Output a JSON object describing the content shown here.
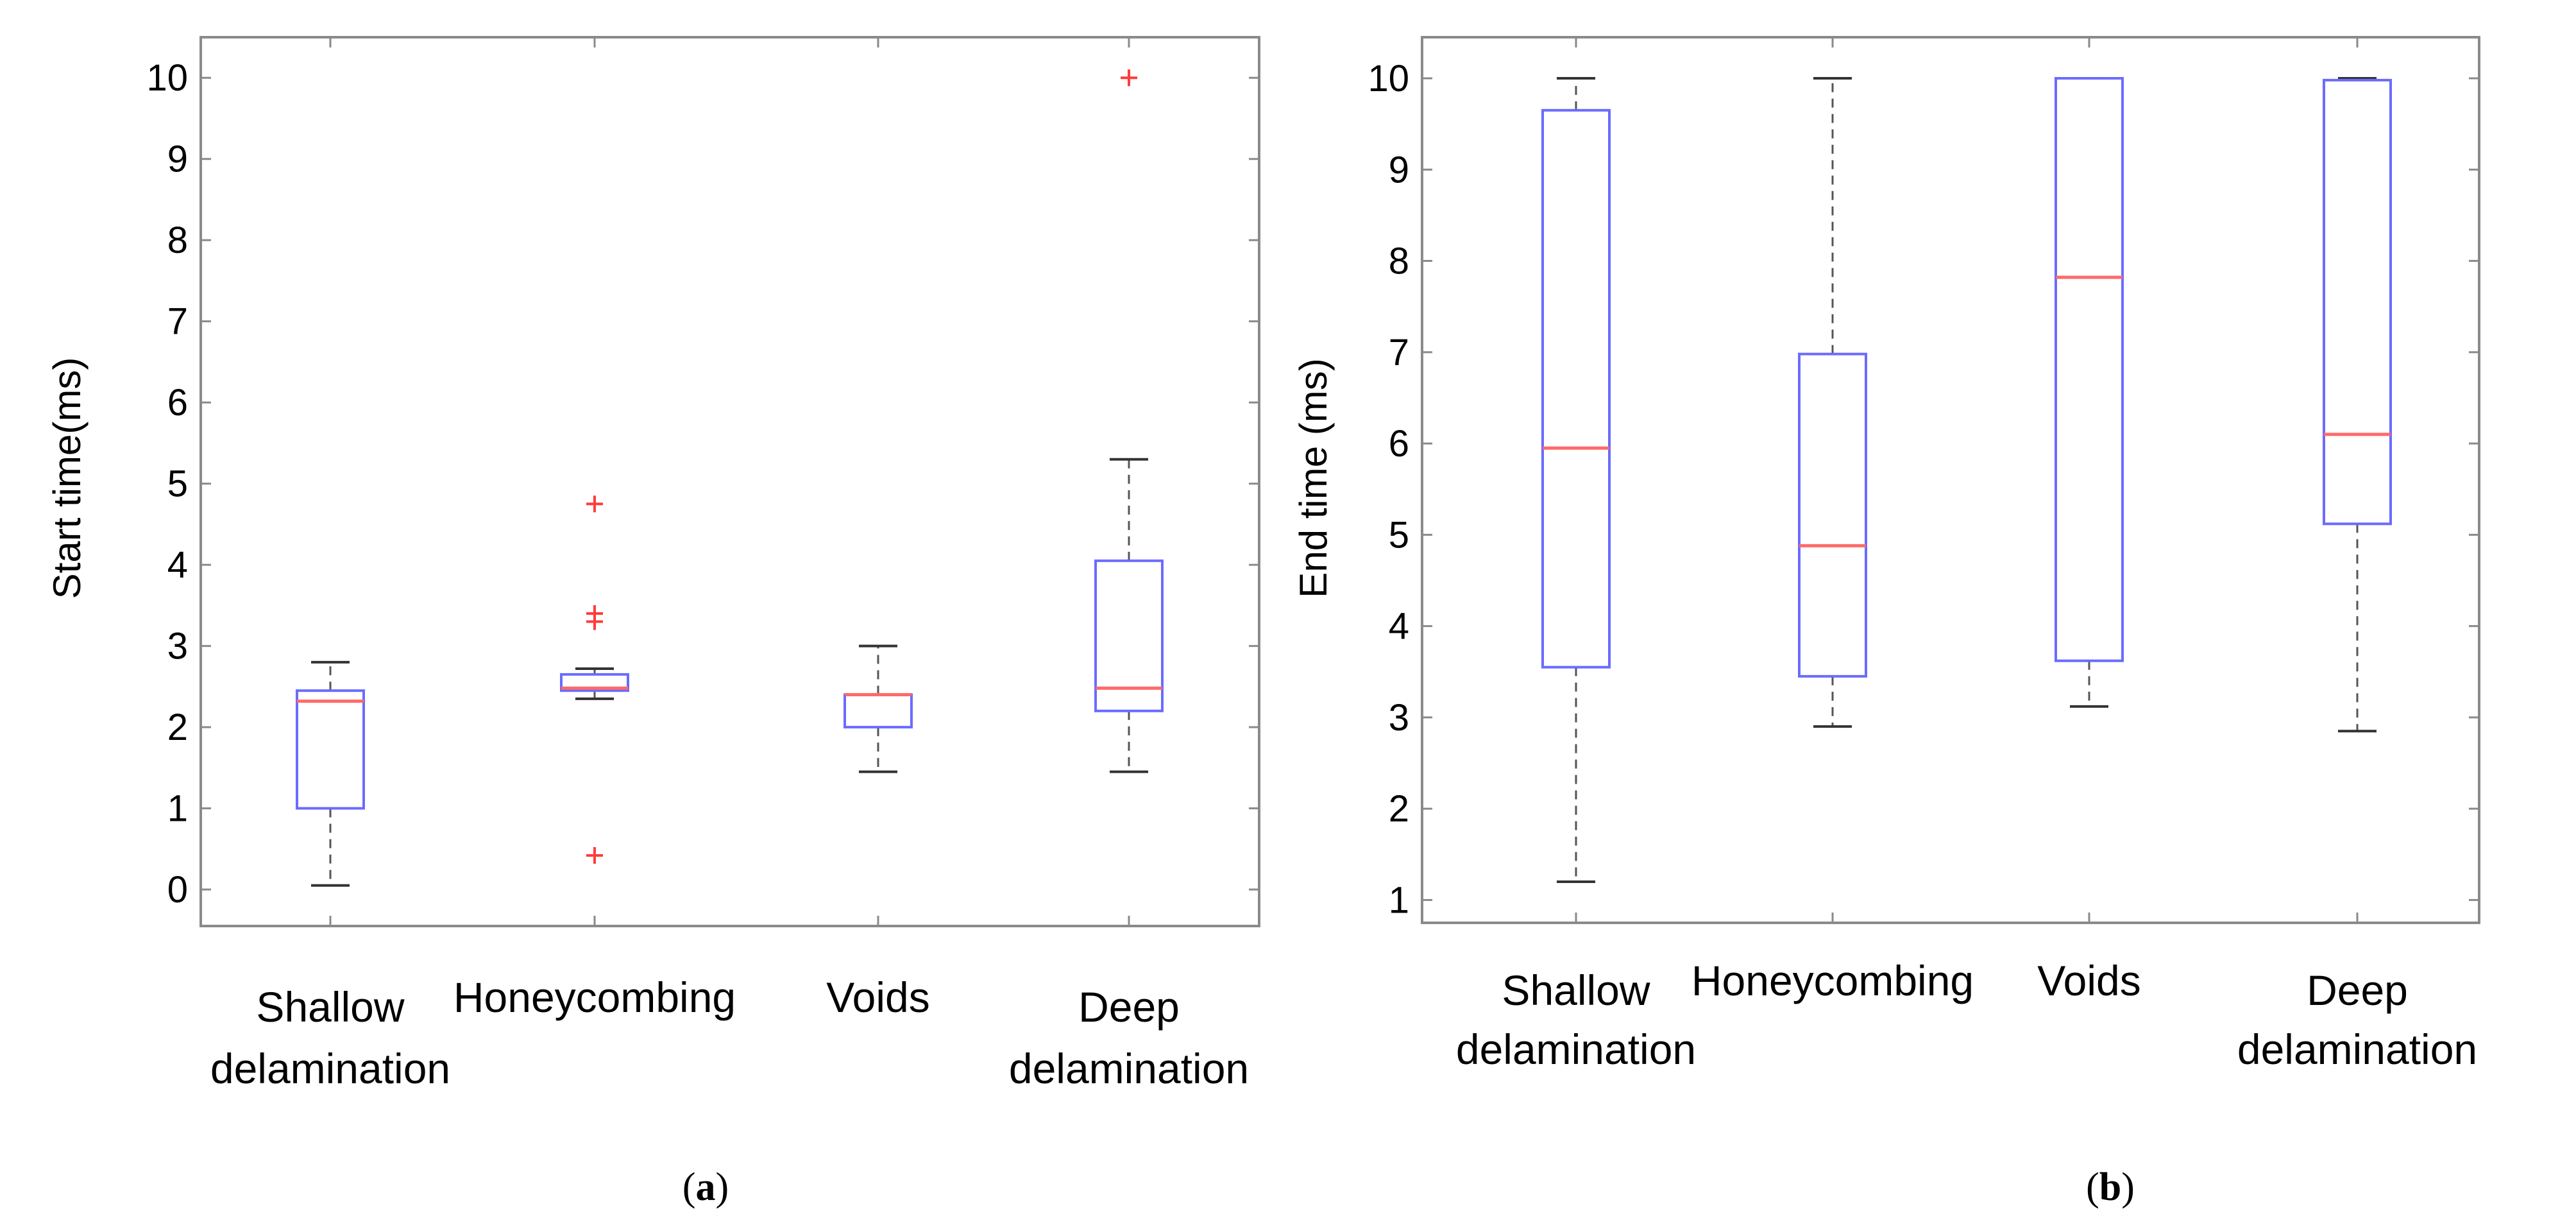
{
  "chart_data": [
    {
      "type": "box",
      "panel_label": "a",
      "ylabel": "Start time(ms)",
      "ylim": [
        -0.45,
        10.5
      ],
      "yticks": [
        0,
        1,
        2,
        3,
        4,
        5,
        6,
        7,
        8,
        9,
        10
      ],
      "categories": [
        {
          "line1": "Shallow",
          "line2": "delamination"
        },
        {
          "line1": "Honeycombing",
          "line2": ""
        },
        {
          "line1": "Voids",
          "line2": ""
        },
        {
          "line1": "Deep",
          "line2": "delamination"
        }
      ],
      "boxes": [
        {
          "whisker_low": 0.05,
          "q1": 1.0,
          "median": 2.32,
          "q3": 2.45,
          "whisker_high": 2.8,
          "outliers": []
        },
        {
          "whisker_low": 2.35,
          "q1": 2.45,
          "median": 2.48,
          "q3": 2.65,
          "whisker_high": 2.72,
          "outliers": [
            4.75,
            3.4,
            3.3,
            0.42
          ]
        },
        {
          "whisker_low": 1.45,
          "q1": 2.0,
          "median": 2.4,
          "q3": 2.4,
          "whisker_high": 3.0,
          "outliers": []
        },
        {
          "whisker_low": 1.45,
          "q1": 2.2,
          "median": 2.48,
          "q3": 4.05,
          "whisker_high": 5.3,
          "outliers": [
            10.0
          ]
        }
      ]
    },
    {
      "type": "box",
      "panel_label": "b",
      "ylabel": "End time (ms)",
      "ylim": [
        0.75,
        10.45
      ],
      "yticks": [
        1,
        2,
        3,
        4,
        5,
        6,
        7,
        8,
        9,
        10
      ],
      "categories": [
        {
          "line1": "Shallow",
          "line2": "delamination"
        },
        {
          "line1": "Honeycombing",
          "line2": ""
        },
        {
          "line1": "Voids",
          "line2": ""
        },
        {
          "line1": "Deep",
          "line2": "delamination"
        }
      ],
      "boxes": [
        {
          "whisker_low": 1.2,
          "q1": 3.55,
          "median": 5.95,
          "q3": 9.65,
          "whisker_high": 10.0,
          "outliers": []
        },
        {
          "whisker_low": 2.9,
          "q1": 3.45,
          "median": 4.88,
          "q3": 6.98,
          "whisker_high": 10.0,
          "outliers": []
        },
        {
          "whisker_low": 3.12,
          "q1": 3.62,
          "median": 7.82,
          "q3": 10.0,
          "whisker_high": 10.0,
          "outliers": []
        },
        {
          "whisker_low": 2.85,
          "q1": 5.12,
          "median": 6.1,
          "q3": 9.98,
          "whisker_high": 10.0,
          "outliers": []
        }
      ]
    }
  ]
}
